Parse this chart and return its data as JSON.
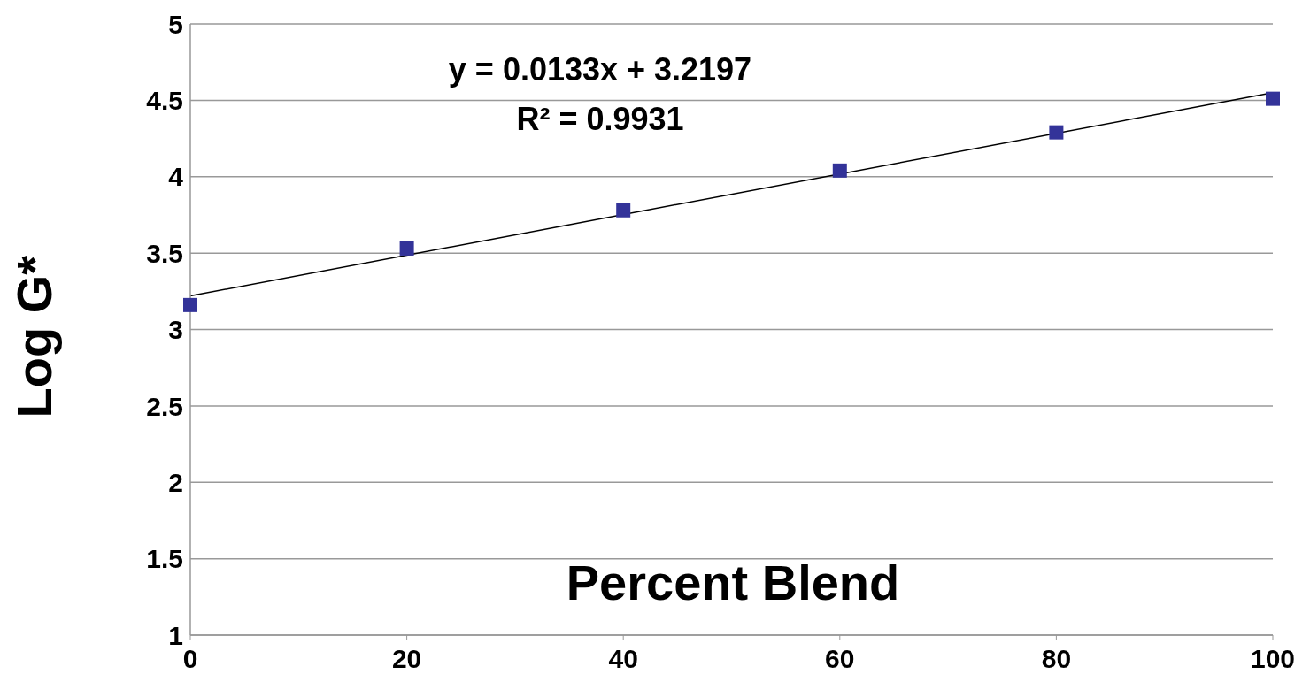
{
  "chart_data": {
    "type": "scatter",
    "xlabel": "Percent Blend",
    "ylabel": "Log G*",
    "x": [
      0,
      20,
      40,
      60,
      80,
      100
    ],
    "xlim": [
      0,
      100
    ],
    "xticks": [
      0,
      20,
      40,
      60,
      80,
      100
    ],
    "ylim": [
      1,
      5
    ],
    "yticks": [
      1,
      1.5,
      2,
      2.5,
      3,
      3.5,
      4,
      4.5,
      5
    ],
    "grid": "y",
    "marker": "square",
    "series": [
      {
        "color": "#333399",
        "values": [
          3.16,
          3.53,
          3.78,
          4.04,
          4.29,
          4.51
        ]
      },
      {
        "type": "line",
        "color": "#000000",
        "x": [
          0,
          100
        ],
        "values": [
          3.22,
          4.55
        ],
        "line_style": "solid",
        "marker": "none"
      }
    ],
    "annotations": [
      "y = 0.0133x + 3.2197",
      "R² = 0.9931"
    ]
  }
}
